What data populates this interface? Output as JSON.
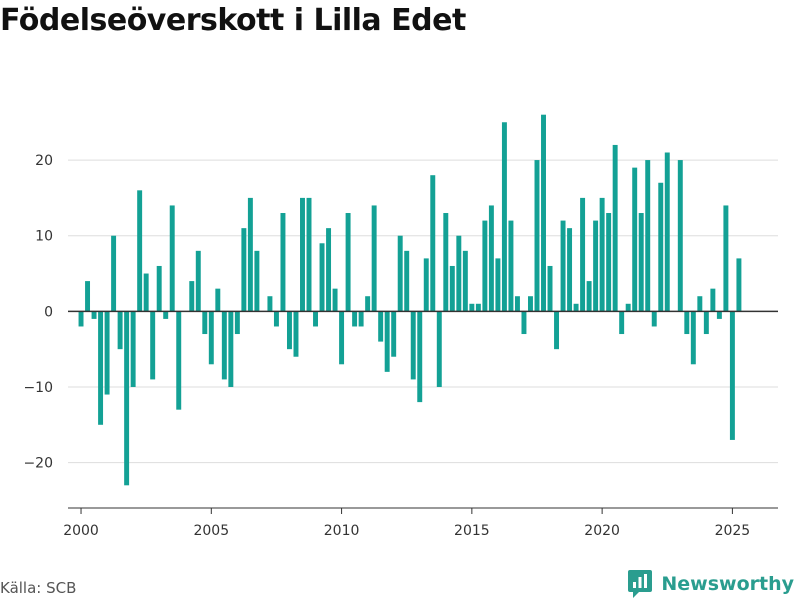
{
  "title": "Födelseöverskott i Lilla Edet",
  "source": "Källa: SCB",
  "brand": {
    "name": "Newsworthy",
    "icon": "bar-chart-logo-icon"
  },
  "colors": {
    "bar": "#13a195",
    "grid": "#dddddd",
    "zero_line": "#333333",
    "axis": "#333333",
    "brand": "#2a9d8f"
  },
  "chart_data": {
    "type": "bar",
    "title": "Födelseöverskott i Lilla Edet",
    "xlabel": "",
    "ylabel": "",
    "xlim": [
      1999.5,
      2026.75
    ],
    "ylim": [
      -26,
      29
    ],
    "xticks": [
      2000,
      2005,
      2010,
      2015,
      2020,
      2025
    ],
    "yticks": [
      -20,
      -10,
      0,
      10,
      20
    ],
    "ytick_labels": [
      "−20",
      "−10",
      "0",
      "10",
      "20"
    ],
    "grid": "horizontal",
    "x": [
      2000.0,
      2000.25,
      2000.5,
      2000.75,
      2001.0,
      2001.25,
      2001.5,
      2001.75,
      2002.0,
      2002.25,
      2002.5,
      2002.75,
      2003.0,
      2003.25,
      2003.5,
      2003.75,
      2004.0,
      2004.25,
      2004.5,
      2004.75,
      2005.0,
      2005.25,
      2005.5,
      2005.75,
      2006.0,
      2006.25,
      2006.5,
      2006.75,
      2007.0,
      2007.25,
      2007.5,
      2007.75,
      2008.0,
      2008.25,
      2008.5,
      2008.75,
      2009.0,
      2009.25,
      2009.5,
      2009.75,
      2010.0,
      2010.25,
      2010.5,
      2010.75,
      2011.0,
      2011.25,
      2011.5,
      2011.75,
      2012.0,
      2012.25,
      2012.5,
      2012.75,
      2013.0,
      2013.25,
      2013.5,
      2013.75,
      2014.0,
      2014.25,
      2014.5,
      2014.75,
      2015.0,
      2015.25,
      2015.5,
      2015.75,
      2016.0,
      2016.25,
      2016.5,
      2016.75,
      2017.0,
      2017.25,
      2017.5,
      2017.75,
      2018.0,
      2018.25,
      2018.5,
      2018.75,
      2019.0,
      2019.25,
      2019.5,
      2019.75,
      2020.0,
      2020.25,
      2020.5,
      2020.75,
      2021.0,
      2021.25,
      2021.5,
      2021.75,
      2022.0,
      2022.25,
      2022.5,
      2022.75,
      2023.0,
      2023.25,
      2023.5,
      2023.75,
      2024.0,
      2024.25,
      2024.5,
      2024.75,
      2025.0,
      2025.25
    ],
    "values": [
      -2,
      4,
      -1,
      -15,
      -11,
      10,
      -5,
      -23,
      -10,
      16,
      5,
      -9,
      6,
      -1,
      14,
      -13,
      0,
      4,
      8,
      -3,
      -7,
      3,
      -9,
      -10,
      -3,
      11,
      15,
      8,
      0,
      2,
      -2,
      13,
      -5,
      -6,
      15,
      15,
      -2,
      9,
      11,
      3,
      -7,
      13,
      -2,
      -2,
      2,
      14,
      -4,
      -8,
      -6,
      10,
      8,
      -9,
      -12,
      7,
      18,
      -10,
      13,
      6,
      10,
      8,
      1,
      1,
      12,
      14,
      7,
      25,
      12,
      2,
      -3,
      2,
      20,
      26,
      6,
      -5,
      12,
      11,
      1,
      15,
      4,
      12,
      15,
      13,
      22,
      -3,
      1,
      19,
      13,
      20,
      -2,
      17,
      21,
      0,
      20,
      -3,
      -7,
      2,
      -3,
      3,
      -1,
      14,
      -17,
      7
    ]
  }
}
